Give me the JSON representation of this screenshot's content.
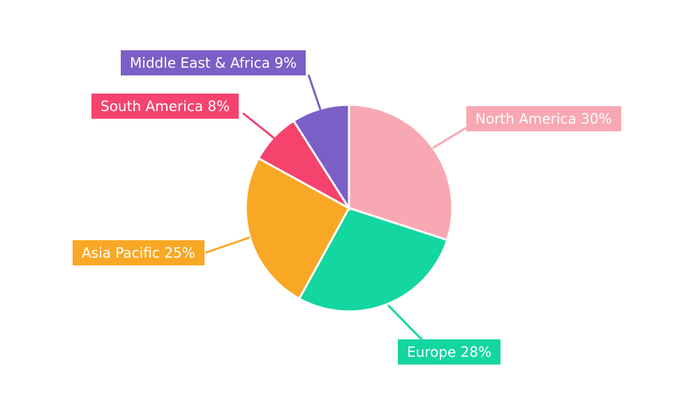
{
  "chart_data": {
    "type": "pie",
    "title": "",
    "legend_position": "none",
    "label_style": "callout-boxes-with-leader-lines",
    "background_color": "#FFFFFF",
    "label_text_color": "#FFFFFF",
    "slice_separator_color": "#FFFFFF",
    "start_angle_deg_from_top": 0,
    "direction": "clockwise",
    "slices": [
      {
        "label": "North America",
        "value": 30,
        "display": "North America 30%",
        "color": "#F8A8B2"
      },
      {
        "label": "Europe",
        "value": 28,
        "display": "Europe 28%",
        "color": "#13D6A0"
      },
      {
        "label": "Asia Pacific",
        "value": 25,
        "display": "Asia Pacific 25%",
        "color": "#F9A825"
      },
      {
        "label": "South America",
        "value": 8,
        "display": "South America 8%",
        "color": "#F5436E"
      },
      {
        "label": "Middle East & Africa",
        "value": 9,
        "display": "Middle East & Africa 9%",
        "color": "#7B5FC6"
      }
    ]
  }
}
